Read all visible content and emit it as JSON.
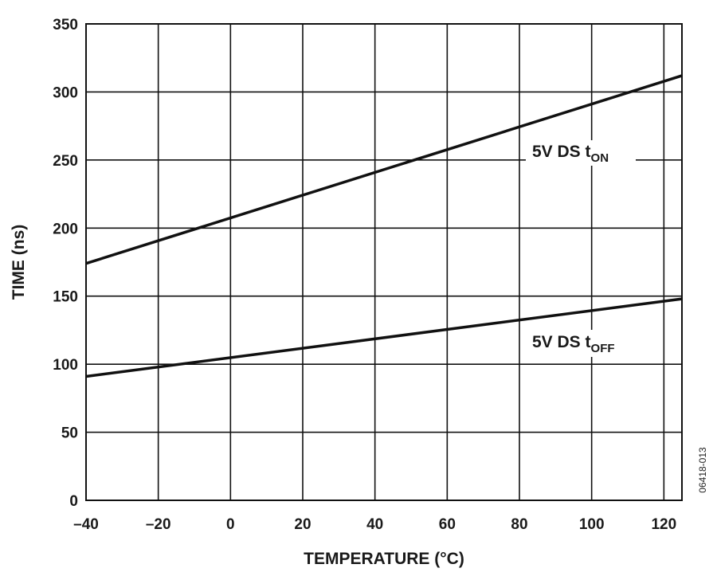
{
  "chart_data": {
    "type": "line",
    "title": "",
    "xlabel": "TEMPERATURE (°C)",
    "ylabel": "TIME (ns)",
    "xlim": [
      -40,
      125
    ],
    "ylim": [
      0,
      350
    ],
    "x_ticks": [
      -40,
      -20,
      0,
      20,
      40,
      60,
      80,
      100,
      120
    ],
    "x_tick_labels": [
      "–40",
      "–20",
      "0",
      "20",
      "40",
      "60",
      "80",
      "100",
      "120"
    ],
    "y_ticks": [
      0,
      50,
      100,
      150,
      200,
      250,
      300,
      350
    ],
    "y_tick_labels": [
      "0",
      "50",
      "100",
      "150",
      "200",
      "250",
      "300",
      "350"
    ],
    "grid": true,
    "legend": "none",
    "series": [
      {
        "name": "5V DS tON",
        "label_main": "5V DS t",
        "label_sub": "ON",
        "x": [
          -40,
          125
        ],
        "y": [
          174,
          312
        ],
        "color": "#111111"
      },
      {
        "name": "5V DS tOFF",
        "label_main": "5V DS t",
        "label_sub": "OFF",
        "x": [
          -40,
          125
        ],
        "y": [
          91,
          148
        ],
        "color": "#111111"
      }
    ],
    "figure_id": "06418-013"
  }
}
